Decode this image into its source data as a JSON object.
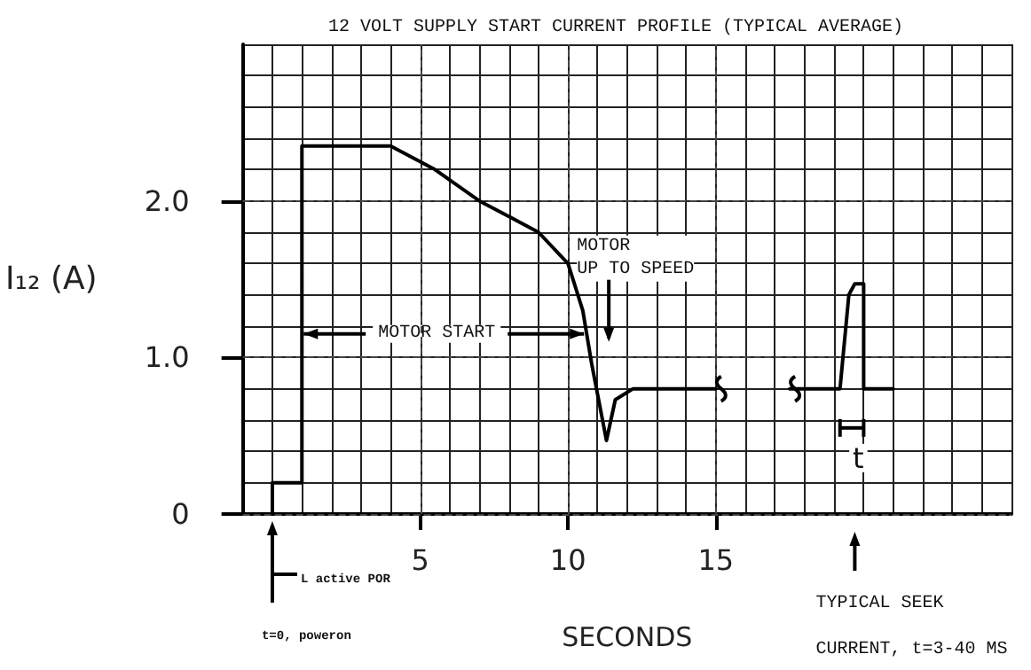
{
  "chart_data": {
    "type": "line",
    "title": "12 VOLT SUPPLY START CURRENT PROFILE (TYPICAL AVERAGE)",
    "xlabel": "SECONDS",
    "ylabel": "I₁₂ (A)",
    "x": [
      0,
      0,
      1,
      1,
      4,
      5.5,
      7,
      8,
      9,
      10,
      10.5,
      10.8,
      11.3,
      11.6,
      12.2,
      13,
      15,
      16,
      17.5,
      19.2,
      19.5,
      19.7,
      20,
      20,
      21
    ],
    "series": [
      {
        "color": "#000000",
        "values": [
          0,
          0.2,
          0.2,
          2.35,
          2.35,
          2.2,
          2.0,
          1.9,
          1.8,
          1.6,
          1.3,
          0.96,
          0.47,
          0.73,
          0.8,
          0.8,
          0.8,
          null,
          0.8,
          0.8,
          1.4,
          1.47,
          1.47,
          0.8,
          0.8
        ]
      }
    ],
    "xlim": [
      -1,
      25
    ],
    "xticks": [
      5,
      10,
      15
    ],
    "ylim": [
      0,
      3
    ],
    "yticks": [
      0,
      {
        "value": 1,
        "label": "1.0"
      },
      {
        "value": 2,
        "label": "2.0"
      }
    ],
    "annotations": [
      "MOTOR\nUP TO SPEED",
      {
        "text": "MOTOR START",
        "x": 10.6,
        "y": 1.15
      },
      "t",
      "L active POR",
      "t=0, poweron",
      "TYPICAL SEEK",
      "CURRENT, t=3-40 MS"
    ],
    "grid": true,
    "marker": "none",
    "line_style": "solid"
  }
}
